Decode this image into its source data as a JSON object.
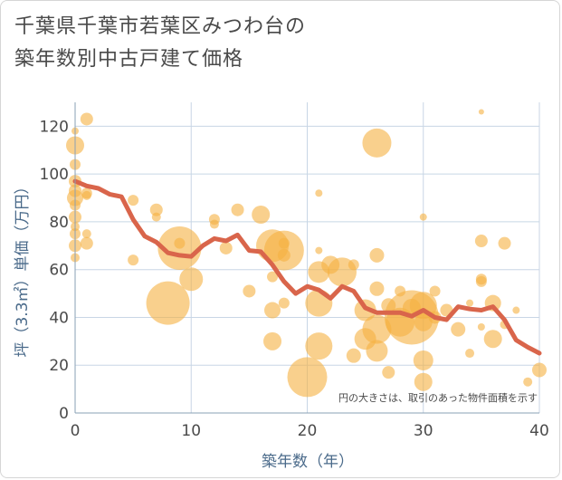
{
  "title_line1": "千葉県千葉市若葉区みつわ台の",
  "title_line2": "築年数別中古戸建て価格",
  "chart_data": {
    "type": "scatter",
    "xlabel": "築年数（年）",
    "ylabel": "坪（3.3㎡）単価（万円）",
    "xlim": [
      0,
      40
    ],
    "ylim": [
      0,
      130
    ],
    "xticks": [
      0,
      10,
      20,
      30,
      40
    ],
    "yticks": [
      0,
      20,
      40,
      60,
      80,
      100,
      120
    ],
    "grid": true,
    "note": "円の大きさは、取引のあった物件面積を示す",
    "bubble_color": "#f5b041",
    "line_color": "#d9654b",
    "bubbles": [
      {
        "x": 0,
        "y": 118,
        "s": 4
      },
      {
        "x": 0,
        "y": 112,
        "s": 10
      },
      {
        "x": 0,
        "y": 104,
        "s": 6
      },
      {
        "x": 0,
        "y": 97,
        "s": 7
      },
      {
        "x": 0,
        "y": 93,
        "s": 7
      },
      {
        "x": 0,
        "y": 90,
        "s": 9
      },
      {
        "x": 0,
        "y": 87,
        "s": 6
      },
      {
        "x": 0,
        "y": 82,
        "s": 7
      },
      {
        "x": 0,
        "y": 78,
        "s": 5
      },
      {
        "x": 0,
        "y": 75,
        "s": 6
      },
      {
        "x": 0,
        "y": 70,
        "s": 7
      },
      {
        "x": 0,
        "y": 65,
        "s": 5
      },
      {
        "x": 1,
        "y": 123,
        "s": 7
      },
      {
        "x": 1,
        "y": 92,
        "s": 6
      },
      {
        "x": 1,
        "y": 91,
        "s": 5
      },
      {
        "x": 1,
        "y": 75,
        "s": 5
      },
      {
        "x": 1,
        "y": 71,
        "s": 7
      },
      {
        "x": 5,
        "y": 89,
        "s": 6
      },
      {
        "x": 5,
        "y": 64,
        "s": 6
      },
      {
        "x": 7,
        "y": 85,
        "s": 7
      },
      {
        "x": 7,
        "y": 82,
        "s": 5
      },
      {
        "x": 8,
        "y": 46,
        "s": 24
      },
      {
        "x": 9,
        "y": 69,
        "s": 24
      },
      {
        "x": 9,
        "y": 71,
        "s": 6
      },
      {
        "x": 10,
        "y": 56,
        "s": 13
      },
      {
        "x": 12,
        "y": 81,
        "s": 6
      },
      {
        "x": 12,
        "y": 79,
        "s": 5
      },
      {
        "x": 13,
        "y": 69,
        "s": 7
      },
      {
        "x": 14,
        "y": 85,
        "s": 7
      },
      {
        "x": 15,
        "y": 51,
        "s": 7
      },
      {
        "x": 16,
        "y": 83,
        "s": 10
      },
      {
        "x": 17,
        "y": 70,
        "s": 18
      },
      {
        "x": 17,
        "y": 57,
        "s": 6
      },
      {
        "x": 17,
        "y": 43,
        "s": 9
      },
      {
        "x": 17,
        "y": 30,
        "s": 10
      },
      {
        "x": 18,
        "y": 68,
        "s": 22
      },
      {
        "x": 18,
        "y": 71,
        "s": 6
      },
      {
        "x": 18,
        "y": 66,
        "s": 7
      },
      {
        "x": 18,
        "y": 46,
        "s": 6
      },
      {
        "x": 21,
        "y": 92,
        "s": 4
      },
      {
        "x": 21,
        "y": 68,
        "s": 4
      },
      {
        "x": 21,
        "y": 59,
        "s": 12
      },
      {
        "x": 21,
        "y": 46,
        "s": 15
      },
      {
        "x": 21,
        "y": 28,
        "s": 15
      },
      {
        "x": 20,
        "y": 15,
        "s": 22
      },
      {
        "x": 22,
        "y": 62,
        "s": 10
      },
      {
        "x": 23,
        "y": 59,
        "s": 16
      },
      {
        "x": 24,
        "y": 62,
        "s": 6
      },
      {
        "x": 24,
        "y": 24,
        "s": 8
      },
      {
        "x": 25,
        "y": 43,
        "s": 12
      },
      {
        "x": 25,
        "y": 31,
        "s": 12
      },
      {
        "x": 26,
        "y": 113,
        "s": 16
      },
      {
        "x": 26,
        "y": 66,
        "s": 8
      },
      {
        "x": 26,
        "y": 52,
        "s": 8
      },
      {
        "x": 26,
        "y": 35,
        "s": 16
      },
      {
        "x": 26,
        "y": 26,
        "s": 12
      },
      {
        "x": 27,
        "y": 45,
        "s": 8
      },
      {
        "x": 27,
        "y": 17,
        "s": 7
      },
      {
        "x": 28,
        "y": 51,
        "s": 6
      },
      {
        "x": 28,
        "y": 38,
        "s": 16
      },
      {
        "x": 29,
        "y": 40,
        "s": 30
      },
      {
        "x": 29,
        "y": 44,
        "s": 10
      },
      {
        "x": 30,
        "y": 82,
        "s": 4
      },
      {
        "x": 30,
        "y": 45,
        "s": 15
      },
      {
        "x": 30,
        "y": 38,
        "s": 10
      },
      {
        "x": 30,
        "y": 22,
        "s": 11
      },
      {
        "x": 30,
        "y": 13,
        "s": 10
      },
      {
        "x": 31,
        "y": 51,
        "s": 6
      },
      {
        "x": 31,
        "y": 40,
        "s": 7
      },
      {
        "x": 32,
        "y": 43,
        "s": 7
      },
      {
        "x": 33,
        "y": 35,
        "s": 8
      },
      {
        "x": 34,
        "y": 46,
        "s": 4
      },
      {
        "x": 34,
        "y": 25,
        "s": 5
      },
      {
        "x": 35,
        "y": 126,
        "s": 3
      },
      {
        "x": 35,
        "y": 72,
        "s": 7
      },
      {
        "x": 35,
        "y": 56,
        "s": 6
      },
      {
        "x": 35,
        "y": 55,
        "s": 6
      },
      {
        "x": 35,
        "y": 36,
        "s": 4
      },
      {
        "x": 36,
        "y": 46,
        "s": 9
      },
      {
        "x": 36,
        "y": 31,
        "s": 10
      },
      {
        "x": 37,
        "y": 71,
        "s": 7
      },
      {
        "x": 37,
        "y": 37,
        "s": 5
      },
      {
        "x": 38,
        "y": 43,
        "s": 4
      },
      {
        "x": 39,
        "y": 13,
        "s": 5
      },
      {
        "x": 40,
        "y": 18,
        "s": 8
      }
    ],
    "line": {
      "x": [
        0,
        1,
        2,
        3,
        4,
        5,
        6,
        7,
        8,
        9,
        10,
        11,
        12,
        13,
        14,
        15,
        16,
        17,
        18,
        19,
        20,
        21,
        22,
        23,
        24,
        25,
        26,
        27,
        28,
        29,
        30,
        31,
        32,
        33,
        34,
        35,
        36,
        37,
        38,
        39,
        40
      ],
      "y": [
        97,
        95,
        94,
        91.5,
        90.5,
        81,
        74,
        71.5,
        67,
        66,
        65.5,
        70,
        73,
        72,
        74.5,
        68,
        67.5,
        62,
        55,
        50,
        53,
        51.5,
        48,
        53,
        51,
        44,
        42,
        42,
        42,
        40.5,
        43,
        40,
        39,
        44.5,
        43.5,
        43,
        44.5,
        39,
        30.5,
        27.5,
        25
      ]
    }
  }
}
